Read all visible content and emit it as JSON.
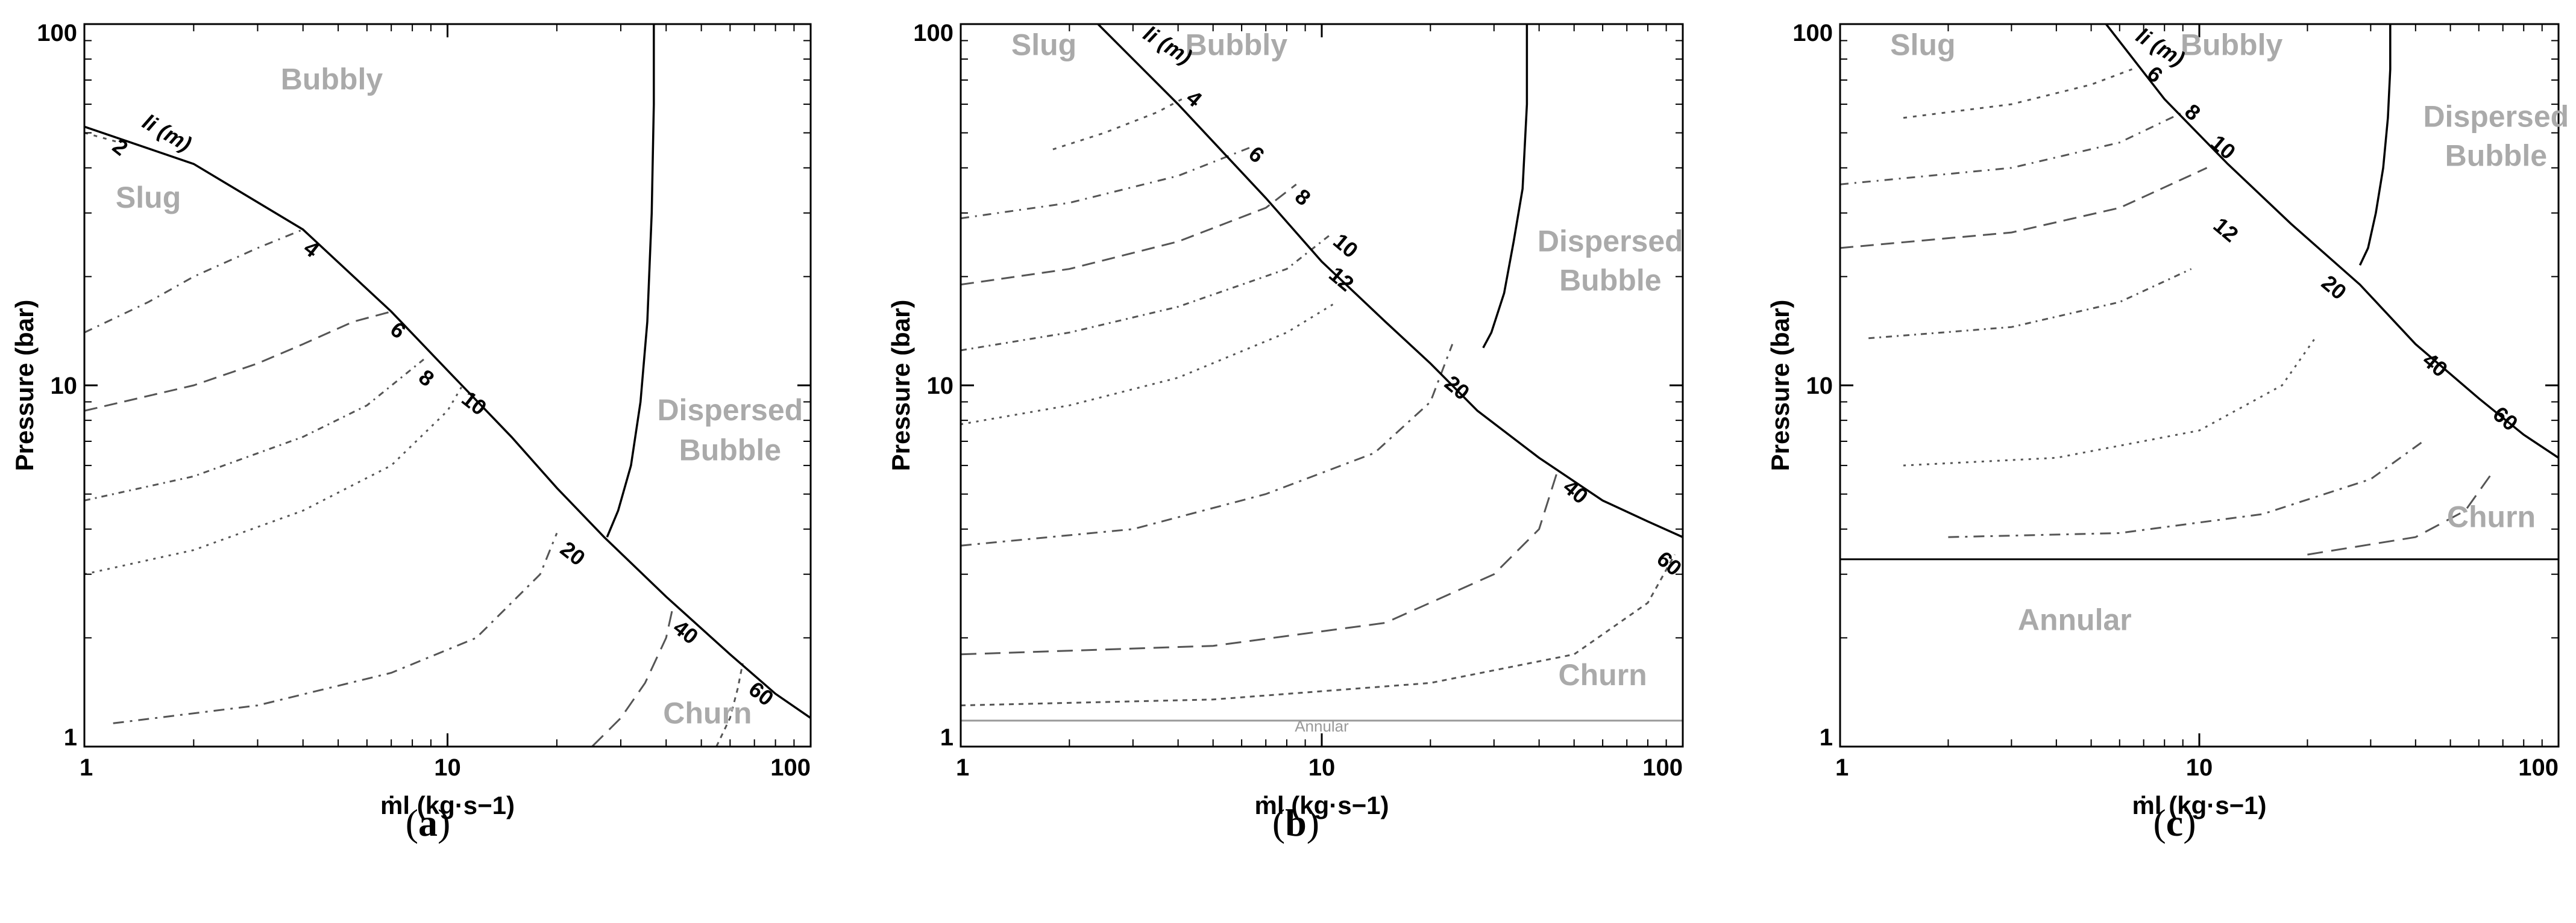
{
  "figure": {
    "captions": [
      {
        "open": "(",
        "letter": "a",
        "close": ")"
      },
      {
        "open": "(",
        "letter": "b",
        "close": ")"
      },
      {
        "open": "(",
        "letter": "c",
        "close": ")"
      }
    ]
  },
  "chart_data": [
    {
      "type": "line",
      "panel": "a",
      "xlabel": "ṁl (kg·s−1)",
      "ylabel": "Pressure (bar)",
      "xscale": "log",
      "yscale": "log",
      "xlim": [
        1,
        100
      ],
      "ylim": [
        1,
        100
      ],
      "xticks": [
        {
          "value": 1,
          "label": "1"
        },
        {
          "value": 10,
          "label": "10"
        },
        {
          "value": 100,
          "label": "100"
        }
      ],
      "yticks": [
        {
          "value": 1,
          "label": "1"
        },
        {
          "value": 10,
          "label": "10"
        },
        {
          "value": 100,
          "label": "100"
        }
      ],
      "boundary_curves": [
        {
          "x": [
            1,
            2,
            4,
            7,
            10,
            15,
            20,
            27,
            40,
            60,
            80,
            100
          ],
          "y": [
            52,
            41,
            27,
            16,
            11,
            7.2,
            5.2,
            3.8,
            2.6,
            1.8,
            1.4,
            1.2
          ]
        },
        {
          "x": [
            37,
            37,
            36.5,
            35.5,
            34,
            32,
            29.5,
            27.5
          ],
          "y": [
            100,
            60,
            30,
            15,
            9,
            6,
            4.5,
            3.8
          ]
        }
      ],
      "regions": [
        {
          "label": "Bubbly",
          "x": 4.8,
          "y": 66
        },
        {
          "label": "Slug",
          "x": 1.5,
          "y": 31
        },
        {
          "label": "Dispersed",
          "x": 60,
          "y": 8.0
        },
        {
          "label": "Bubble",
          "x": 60,
          "y": 6.2
        },
        {
          "label": "Churn",
          "x": 52,
          "y": 1.16
        }
      ],
      "curve_label_title": "li (m)",
      "curve_label_title_pos": {
        "x": 1.65,
        "y": 48
      },
      "length_curves": [
        {
          "length": "2",
          "x": [
            1,
            1.25
          ],
          "y": [
            50,
            47
          ],
          "label_x": 1.22,
          "label_y": 44
        },
        {
          "length": "4",
          "x": [
            1,
            1.5,
            2,
            3,
            4
          ],
          "y": [
            14,
            17,
            20,
            24,
            27
          ],
          "label_x": 4.1,
          "label_y": 23
        },
        {
          "length": "6",
          "x": [
            1,
            2,
            3,
            4,
            5.5,
            7
          ],
          "y": [
            8.5,
            10,
            11.5,
            13,
            15,
            16
          ],
          "label_x": 7.1,
          "label_y": 13.7
        },
        {
          "length": "8",
          "x": [
            1,
            2,
            4,
            6,
            8.6
          ],
          "y": [
            4.8,
            5.6,
            7.2,
            8.8,
            11.8
          ],
          "label_x": 8.5,
          "label_y": 10.1
        },
        {
          "length": "10",
          "x": [
            1,
            2,
            4,
            7,
            10,
            11
          ],
          "y": [
            3.0,
            3.5,
            4.5,
            6.0,
            8.5,
            10.0
          ],
          "label_x": 11.5,
          "label_y": 8.6
        },
        {
          "length": "20",
          "x": [
            1.2,
            3,
            7,
            12,
            18,
            20
          ],
          "y": [
            1.16,
            1.3,
            1.6,
            2.0,
            3.0,
            3.9
          ],
          "label_x": 21.5,
          "label_y": 3.3
        },
        {
          "length": "40",
          "x": [
            25,
            30,
            35,
            40,
            42
          ],
          "y": [
            1.0,
            1.2,
            1.5,
            2.0,
            2.5
          ],
          "label_x": 44,
          "label_y": 2.0
        },
        {
          "length": "60",
          "x": [
            55,
            60,
            63,
            65
          ],
          "y": [
            1.0,
            1.2,
            1.45,
            1.7
          ],
          "label_x": 71,
          "label_y": 1.35
        }
      ]
    },
    {
      "type": "line",
      "panel": "b",
      "xlabel": "ṁl (kg·s−1)",
      "ylabel": "Pressure (bar)",
      "xscale": "log",
      "yscale": "log",
      "xlim": [
        1,
        100
      ],
      "ylim": [
        1,
        100
      ],
      "xticks": [
        {
          "value": 1,
          "label": "1"
        },
        {
          "value": 10,
          "label": "10"
        },
        {
          "value": 100,
          "label": "100"
        }
      ],
      "yticks": [
        {
          "value": 1,
          "label": "1"
        },
        {
          "value": 10,
          "label": "10"
        },
        {
          "value": 100,
          "label": "100"
        }
      ],
      "boundary_curves": [
        {
          "x": [
            2.4,
            4,
            7,
            10,
            15,
            20,
            27,
            40,
            60,
            80,
            100
          ],
          "y": [
            100,
            60,
            33,
            22,
            15,
            11.5,
            8.5,
            6.3,
            4.8,
            4.2,
            3.8
          ]
        },
        {
          "x": [
            37,
            37,
            36,
            34,
            32,
            29.5,
            28
          ],
          "y": [
            100,
            60,
            35,
            25,
            18,
            14,
            12.7
          ]
        }
      ],
      "baseline": {
        "y": 1.18,
        "x": [
          1,
          100
        ],
        "label": "Annular",
        "label_x": 10,
        "label_y": 1.1
      },
      "regions": [
        {
          "label": "Slug",
          "x": 1.7,
          "y": 82
        },
        {
          "label": "Bubbly",
          "x": 5.8,
          "y": 82
        },
        {
          "label": "Dispersed",
          "x": 63,
          "y": 23.5
        },
        {
          "label": "Bubble",
          "x": 63,
          "y": 18.3
        },
        {
          "label": "Churn",
          "x": 60,
          "y": 1.48
        }
      ],
      "curve_label_title": "li (m)",
      "curve_label_title_pos": {
        "x": 3.65,
        "y": 84
      },
      "length_curves": [
        {
          "length": "4",
          "x": [
            1.8,
            2.5,
            3.5,
            4.1
          ],
          "y": [
            45,
            50,
            57,
            62
          ],
          "label_x": 4.3,
          "label_y": 60
        },
        {
          "length": "6",
          "x": [
            1,
            2,
            4,
            6.5
          ],
          "y": [
            29,
            32,
            38,
            46
          ],
          "label_x": 6.4,
          "label_y": 42
        },
        {
          "length": "8",
          "x": [
            1,
            2,
            4,
            7,
            8.5
          ],
          "y": [
            19,
            21,
            25,
            31,
            36
          ],
          "label_x": 8.6,
          "label_y": 32
        },
        {
          "length": "10",
          "x": [
            1,
            2,
            4,
            8,
            10.5
          ],
          "y": [
            12.5,
            14,
            16.5,
            21,
            26
          ],
          "label_x": 11.3,
          "label_y": 23.5
        },
        {
          "length": "12",
          "x": [
            1,
            2,
            4,
            8,
            11
          ],
          "y": [
            7.8,
            8.8,
            10.5,
            14,
            17
          ],
          "label_x": 11,
          "label_y": 19
        },
        {
          "length": "20",
          "x": [
            1,
            3,
            7,
            14,
            20,
            23
          ],
          "y": [
            3.6,
            4.0,
            5.0,
            6.5,
            9.0,
            13.0
          ],
          "label_x": 23,
          "label_y": 9.5
        },
        {
          "length": "40",
          "x": [
            1,
            5,
            15,
            30,
            40,
            45
          ],
          "y": [
            1.8,
            1.9,
            2.2,
            3.0,
            4.0,
            5.8
          ],
          "label_x": 49,
          "label_y": 4.9
        },
        {
          "length": "60",
          "x": [
            1,
            5,
            20,
            50,
            80,
            95
          ],
          "y": [
            1.3,
            1.35,
            1.5,
            1.8,
            2.5,
            3.4
          ],
          "label_x": 89,
          "label_y": 3.1
        }
      ]
    },
    {
      "type": "line",
      "panel": "c",
      "xlabel": "ṁl (kg·s−1)",
      "ylabel": "Pressure (bar)",
      "xscale": "log",
      "yscale": "log",
      "xlim": [
        1,
        100
      ],
      "ylim": [
        1,
        100
      ],
      "xticks": [
        {
          "value": 1,
          "label": "1"
        },
        {
          "value": 10,
          "label": "10"
        },
        {
          "value": 100,
          "label": "100"
        }
      ],
      "yticks": [
        {
          "value": 1,
          "label": "1"
        },
        {
          "value": 10,
          "label": "10"
        },
        {
          "value": 100,
          "label": "100"
        }
      ],
      "boundary_curves": [
        {
          "x": [
            5.5,
            8,
            12,
            18,
            28,
            40,
            60,
            80,
            100
          ],
          "y": [
            100,
            62,
            41,
            28,
            19,
            13,
            9.2,
            7.3,
            6.3
          ]
        },
        {
          "x": [
            34,
            34,
            33.5,
            32.5,
            31,
            29.5,
            28
          ],
          "y": [
            100,
            75,
            55,
            40,
            30,
            24,
            21.5
          ]
        }
      ],
      "baseline": {
        "y": 3.3,
        "x": [
          1,
          100
        ]
      },
      "regions": [
        {
          "label": "Slug",
          "x": 1.7,
          "y": 82
        },
        {
          "label": "Bubbly",
          "x": 12.3,
          "y": 82
        },
        {
          "label": "Dispersed",
          "x": 67,
          "y": 52
        },
        {
          "label": "Bubble",
          "x": 67,
          "y": 40.5
        },
        {
          "label": "Churn",
          "x": 65,
          "y": 4.05
        },
        {
          "label": "Annular",
          "x": 4.5,
          "y": 2.1
        }
      ],
      "curve_label_title": "li (m)",
      "curve_label_title_pos": {
        "x": 7.6,
        "y": 83
      },
      "length_curves": [
        {
          "length": "6",
          "x": [
            1.5,
            3,
            5,
            6.5
          ],
          "y": [
            55,
            60,
            68,
            75
          ],
          "label_x": 7.3,
          "label_y": 70
        },
        {
          "length": "8",
          "x": [
            1,
            3,
            6,
            9
          ],
          "y": [
            36,
            40,
            47,
            57
          ],
          "label_x": 9.3,
          "label_y": 55
        },
        {
          "length": "10",
          "x": [
            1,
            3,
            6,
            10.5
          ],
          "y": [
            24,
            26.5,
            31,
            40
          ],
          "label_x": 11.3,
          "label_y": 44
        },
        {
          "length": "12",
          "x": [
            1.2,
            3,
            6,
            9.5
          ],
          "y": [
            13.5,
            14.5,
            17,
            21
          ],
          "label_x": 11.5,
          "label_y": 26
        },
        {
          "length": "20",
          "x": [
            1.5,
            4,
            10,
            17,
            21
          ],
          "y": [
            6.0,
            6.3,
            7.5,
            10,
            13.5
          ],
          "label_x": 23,
          "label_y": 18
        },
        {
          "length": "40",
          "x": [
            2,
            6,
            15,
            30,
            42
          ],
          "y": [
            3.8,
            3.9,
            4.4,
            5.5,
            7.0
          ],
          "label_x": 44,
          "label_y": 11
        },
        {
          "length": "60",
          "x": [
            20,
            40,
            55,
            66
          ],
          "y": [
            3.4,
            3.8,
            4.5,
            5.8
          ],
          "label_x": 69,
          "label_y": 7.8
        }
      ]
    }
  ]
}
